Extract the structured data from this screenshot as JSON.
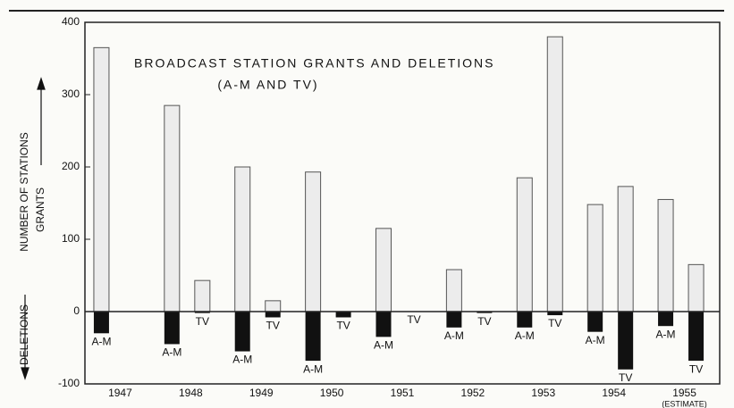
{
  "chart_data": {
    "type": "bar",
    "title": "BROADCAST STATION GRANTS AND DELETIONS",
    "subtitle": "(A-M AND TV)",
    "y_label": "NUMBER OF STATIONS",
    "up_label": "GRANTS",
    "down_label": "DELETIONS",
    "categories": [
      "1947",
      "1948",
      "1949",
      "1950",
      "1951",
      "1952",
      "1953",
      "1954",
      "1955"
    ],
    "last_category_note": "(ESTIMATE)",
    "series": [
      {
        "name": "A-M",
        "grants": [
          365,
          285,
          200,
          193,
          115,
          58,
          185,
          148,
          155
        ],
        "deletions": [
          -30,
          -45,
          -55,
          -68,
          -35,
          -22,
          -22,
          -28,
          -20
        ]
      },
      {
        "name": "TV",
        "grants": [
          null,
          43,
          15,
          0,
          0,
          0,
          380,
          173,
          65
        ],
        "deletions": [
          null,
          -2,
          -8,
          -8,
          0,
          -2,
          -5,
          -80,
          -68
        ]
      }
    ],
    "grants_color": "#ececec",
    "deletions_color": "#111111",
    "ylim": [
      -100,
      400
    ],
    "yticks": [
      -100,
      0,
      100,
      200,
      300,
      400
    ]
  }
}
